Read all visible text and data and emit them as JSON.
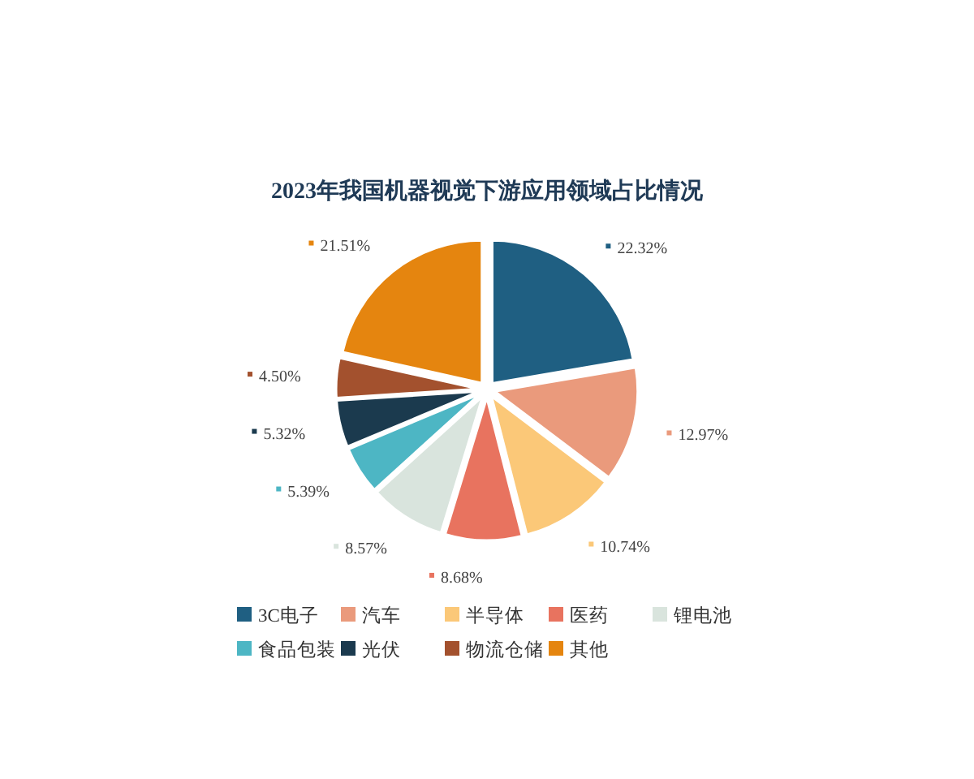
{
  "chart_data": {
    "type": "pie",
    "title": "2023年我国机器视觉下游应用领域占比情况",
    "categories": [
      "3C电子",
      "汽车",
      "半导体",
      "医药",
      "锂电池",
      "食品包装",
      "光伏",
      "物流仓储",
      "其他"
    ],
    "values": [
      22.32,
      12.97,
      10.74,
      8.68,
      8.57,
      5.39,
      5.32,
      4.5,
      21.51
    ],
    "value_labels": [
      "22.32%",
      "12.97%",
      "10.74%",
      "8.68%",
      "8.57%",
      "5.39%",
      "5.32%",
      "4.50%",
      "21.51%"
    ],
    "colors": [
      "#1f5f82",
      "#ea9a7c",
      "#fbc878",
      "#e8735f",
      "#d9e4dd",
      "#4db6c4",
      "#1b3a4e",
      "#a3512e",
      "#e5850f"
    ],
    "legend": "bottom"
  }
}
